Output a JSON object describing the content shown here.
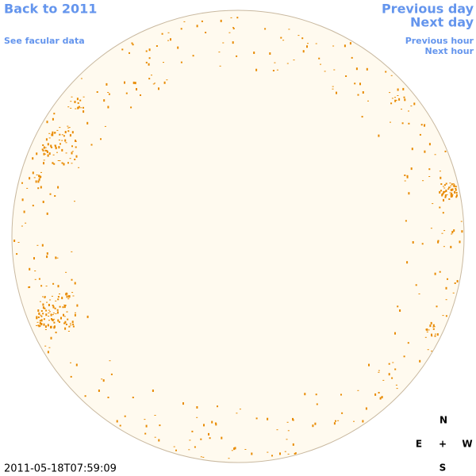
{
  "links": {
    "back": "Back to 2011",
    "facular": "See facular data",
    "previous_day": "Previous day",
    "next_day": "Next day",
    "previous_hour": "Previous hour",
    "next_hour": "Next hour"
  },
  "compass": {
    "north": "N",
    "east": "E",
    "center": "+",
    "west": "W",
    "south": "S"
  },
  "timestamp": "2011-05-18T07:59:09"
}
